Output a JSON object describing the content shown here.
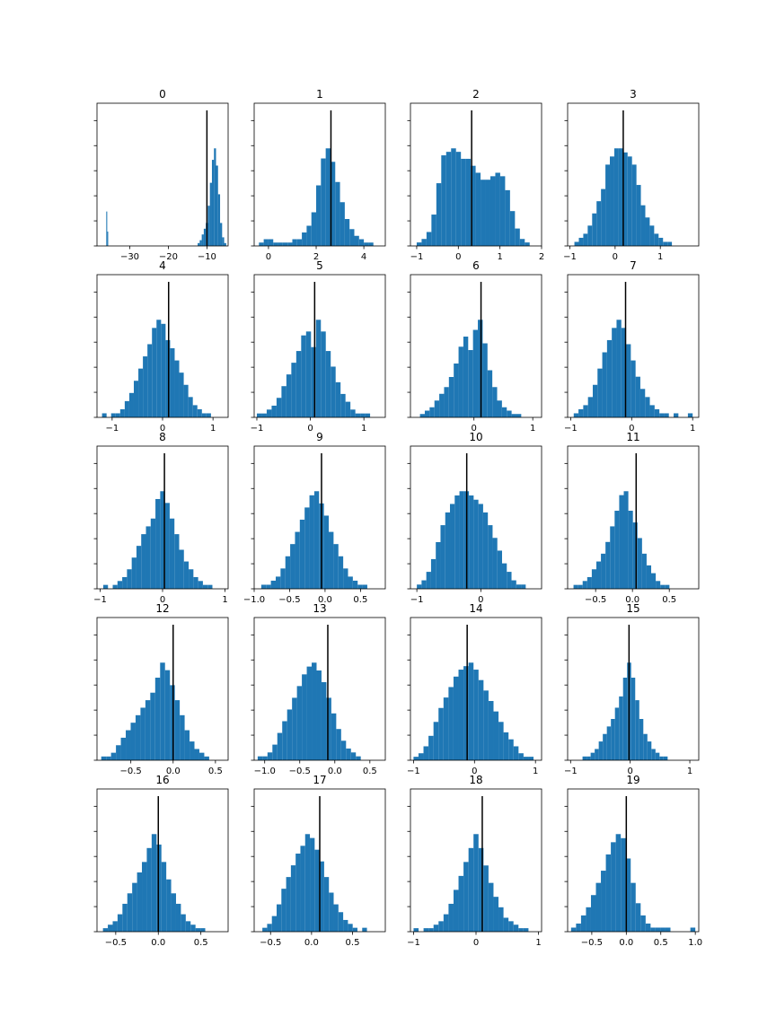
{
  "figure": {
    "bar_color": "#1f77b4",
    "marker_color": "#000000",
    "bins": 25
  },
  "chart_data": [
    {
      "type": "bar",
      "title": "0",
      "xlim": [
        -38.5,
        -4.5
      ],
      "xticks": [
        -30,
        -20,
        -10
      ],
      "xtick_labels": [
        "−30",
        "−20",
        "−10"
      ],
      "marker": -10.0,
      "hist_segments": [
        {
          "range": [
            -36.1,
            -35.6
          ],
          "bins": 2,
          "values": [
            12,
            5
          ]
        },
        {
          "range": [
            -12.4,
            -5.0
          ],
          "bins": 14,
          "values": [
            1,
            2,
            4,
            6,
            8,
            14,
            22,
            30,
            34,
            28,
            18,
            8,
            3,
            1
          ]
        }
      ]
    },
    {
      "type": "bar",
      "title": "1",
      "xlim": [
        -0.6,
        4.9
      ],
      "xticks": [
        0,
        2,
        4
      ],
      "xtick_labels": [
        "0",
        "2",
        "4"
      ],
      "marker": 2.62,
      "hist": {
        "range": [
          -0.4,
          4.6
        ],
        "values": [
          1,
          2,
          2,
          1,
          1,
          1,
          1,
          2,
          2,
          4,
          6,
          10,
          18,
          26,
          29,
          25,
          19,
          13,
          8,
          5,
          3,
          2,
          1,
          1,
          0
        ]
      }
    },
    {
      "type": "bar",
      "title": "2",
      "xlim": [
        -1.15,
        2.0
      ],
      "xticks": [
        -1,
        0,
        1,
        2
      ],
      "xtick_labels": [
        "−1",
        "0",
        "1",
        "2"
      ],
      "marker": 0.32,
      "hist": {
        "range": [
          -1.0,
          1.95
        ],
        "values": [
          1,
          2,
          4,
          9,
          18,
          26,
          27,
          28,
          27,
          25,
          25,
          23,
          21,
          19,
          19,
          20,
          21,
          20,
          16,
          10,
          5,
          2,
          1,
          0,
          0
        ]
      }
    },
    {
      "type": "bar",
      "title": "3",
      "xlim": [
        -1.05,
        1.85
      ],
      "xticks": [
        -1,
        0,
        1
      ],
      "xtick_labels": [
        "−1",
        "0",
        "1"
      ],
      "marker": 0.18,
      "hist": {
        "range": [
          -0.9,
          1.55
        ],
        "values": [
          1,
          2,
          3,
          5,
          8,
          11,
          14,
          20,
          22,
          24,
          24,
          23,
          22,
          20,
          15,
          10,
          7,
          5,
          3,
          2,
          1,
          1,
          0,
          0,
          0
        ]
      }
    },
    {
      "type": "bar",
      "title": "4",
      "xlim": [
        -1.3,
        1.3
      ],
      "xticks": [
        -1,
        0,
        1
      ],
      "xtick_labels": [
        "−1",
        "0",
        "1"
      ],
      "marker": 0.12,
      "hist": {
        "range": [
          -1.2,
          1.05
        ],
        "values": [
          1,
          0,
          1,
          1,
          2,
          4,
          6,
          9,
          12,
          15,
          18,
          22,
          24,
          23,
          19,
          17,
          14,
          11,
          8,
          5,
          3,
          2,
          1,
          1,
          0
        ]
      }
    },
    {
      "type": "bar",
      "title": "5",
      "xlim": [
        -1.05,
        1.4
      ],
      "xticks": [
        -1,
        0,
        1
      ],
      "xtick_labels": [
        "−1",
        "0",
        "1"
      ],
      "marker": 0.08,
      "hist": {
        "range": [
          -1.0,
          1.3
        ],
        "values": [
          1,
          1,
          2,
          3,
          5,
          8,
          11,
          14,
          17,
          21,
          22,
          18,
          25,
          22,
          17,
          13,
          9,
          6,
          4,
          2,
          1,
          1,
          1,
          0,
          0
        ]
      }
    },
    {
      "type": "bar",
      "title": "6",
      "xlim": [
        -1.08,
        1.15
      ],
      "xticks": [
        0,
        1
      ],
      "xtick_labels": [
        "0",
        "1"
      ],
      "marker": 0.12,
      "hist": {
        "range": [
          -1.0,
          1.05
        ],
        "values": [
          0,
          1,
          2,
          3,
          5,
          7,
          9,
          12,
          16,
          21,
          24,
          20,
          26,
          29,
          22,
          14,
          9,
          5,
          3,
          2,
          1,
          1,
          0,
          0,
          0
        ]
      }
    },
    {
      "type": "bar",
      "title": "7",
      "xlim": [
        -1.05,
        1.1
      ],
      "xticks": [
        -1,
        0,
        1
      ],
      "xtick_labels": [
        "−1",
        "0",
        "1"
      ],
      "marker": -0.1,
      "hist": {
        "range": [
          -0.95,
          1.0
        ],
        "values": [
          1,
          2,
          3,
          5,
          8,
          12,
          16,
          19,
          22,
          24,
          22,
          18,
          14,
          10,
          7,
          5,
          3,
          2,
          1,
          1,
          0,
          1,
          0,
          0,
          1
        ]
      }
    },
    {
      "type": "bar",
      "title": "8",
      "xlim": [
        -1.05,
        1.05
      ],
      "xticks": [
        -1,
        0,
        1
      ],
      "xtick_labels": [
        "−1",
        "0",
        "1"
      ],
      "marker": 0.03,
      "hist": {
        "range": [
          -0.95,
          0.95
        ],
        "values": [
          1,
          0,
          1,
          2,
          3,
          5,
          8,
          11,
          14,
          16,
          18,
          23,
          25,
          22,
          18,
          14,
          10,
          7,
          5,
          3,
          2,
          1,
          1,
          0,
          0
        ]
      }
    },
    {
      "type": "bar",
      "title": "9",
      "xlim": [
        -1.0,
        0.85
      ],
      "xticks": [
        -1.0,
        -0.5,
        0.0,
        0.5
      ],
      "xtick_labels": [
        "−1.0",
        "−0.5",
        "0.0",
        "0.5"
      ],
      "marker": -0.05,
      "hist": {
        "range": [
          -0.9,
          0.8
        ],
        "values": [
          1,
          1,
          2,
          3,
          5,
          8,
          11,
          14,
          17,
          20,
          23,
          24,
          21,
          18,
          14,
          11,
          8,
          5,
          3,
          2,
          1,
          1,
          0,
          0,
          0
        ]
      }
    },
    {
      "type": "bar",
      "title": "10",
      "xlim": [
        -1.1,
        0.95
      ],
      "xticks": [
        -1,
        0
      ],
      "xtick_labels": [
        "−1",
        "0"
      ],
      "marker": -0.22,
      "hist": {
        "range": [
          -1.0,
          0.85
        ],
        "values": [
          1,
          2,
          4,
          7,
          11,
          15,
          18,
          20,
          22,
          23,
          23,
          22,
          21,
          20,
          18,
          15,
          12,
          9,
          6,
          4,
          2,
          1,
          1,
          0,
          0
        ]
      }
    },
    {
      "type": "bar",
      "title": "11",
      "xlim": [
        -0.88,
        0.9
      ],
      "xticks": [
        -0.5,
        0.0,
        0.5
      ],
      "xtick_labels": [
        "−0.5",
        "0.0",
        "0.5"
      ],
      "marker": 0.05,
      "hist": {
        "range": [
          -0.8,
          0.75
        ],
        "values": [
          1,
          1,
          2,
          3,
          5,
          7,
          9,
          12,
          16,
          20,
          24,
          25,
          20,
          17,
          13,
          9,
          6,
          4,
          2,
          1,
          1,
          0,
          0,
          0,
          0
        ]
      }
    },
    {
      "type": "bar",
      "title": "12",
      "xlim": [
        -0.9,
        0.65
      ],
      "xticks": [
        -0.5,
        0.0,
        0.5
      ],
      "xtick_labels": [
        "−0.5",
        "0.0",
        "0.5"
      ],
      "marker": 0.0,
      "hist": {
        "range": [
          -0.85,
          0.6
        ],
        "values": [
          1,
          1,
          2,
          4,
          6,
          8,
          10,
          12,
          14,
          16,
          18,
          22,
          26,
          24,
          20,
          16,
          12,
          8,
          5,
          3,
          2,
          1,
          0,
          0,
          0
        ]
      }
    },
    {
      "type": "bar",
      "title": "13",
      "xlim": [
        -1.15,
        0.72
      ],
      "xticks": [
        -1.0,
        -0.5,
        0.0,
        0.5
      ],
      "xtick_labels": [
        "−1.0",
        "−0.5",
        "0.0",
        "0.5"
      ],
      "marker": -0.1,
      "hist": {
        "range": [
          -1.1,
          0.65
        ],
        "values": [
          1,
          1,
          2,
          4,
          7,
          10,
          13,
          16,
          19,
          22,
          24,
          25,
          23,
          20,
          16,
          12,
          8,
          5,
          3,
          2,
          1,
          0,
          0,
          0,
          0
        ]
      }
    },
    {
      "type": "bar",
      "title": "14",
      "xlim": [
        -1.05,
        1.1
      ],
      "xticks": [
        -1,
        0,
        1
      ],
      "xtick_labels": [
        "−1",
        "0",
        "1"
      ],
      "marker": -0.12,
      "hist": {
        "range": [
          -1.0,
          1.05
        ],
        "values": [
          1,
          2,
          4,
          7,
          11,
          15,
          18,
          21,
          24,
          26,
          27,
          28,
          26,
          23,
          20,
          17,
          14,
          11,
          8,
          6,
          4,
          2,
          1,
          1,
          0
        ]
      }
    },
    {
      "type": "bar",
      "title": "15",
      "xlim": [
        -1.05,
        1.15
      ],
      "xticks": [
        -1,
        0,
        1
      ],
      "xtick_labels": [
        "−1",
        "0",
        "1"
      ],
      "marker": -0.02,
      "hist": {
        "range": [
          -0.8,
          0.9
        ],
        "values": [
          1,
          1,
          2,
          3,
          5,
          7,
          9,
          11,
          14,
          17,
          22,
          26,
          22,
          16,
          11,
          7,
          5,
          3,
          2,
          1,
          1,
          0,
          0,
          0,
          0
        ]
      }
    },
    {
      "type": "bar",
      "title": "16",
      "xlim": [
        -0.72,
        0.82
      ],
      "xticks": [
        -0.5,
        0.0,
        0.5
      ],
      "xtick_labels": [
        "−0.5",
        "0.0",
        "0.5"
      ],
      "marker": 0.0,
      "hist": {
        "range": [
          -0.65,
          0.78
        ],
        "values": [
          1,
          2,
          3,
          5,
          8,
          11,
          14,
          17,
          20,
          24,
          28,
          25,
          20,
          15,
          11,
          8,
          5,
          3,
          2,
          1,
          1,
          0,
          0,
          0,
          0
        ]
      }
    },
    {
      "type": "bar",
      "title": "17",
      "xlim": [
        -0.7,
        0.9
      ],
      "xticks": [
        -0.5,
        0.0,
        0.5
      ],
      "xtick_labels": [
        "−0.5",
        "0.0",
        "0.5"
      ],
      "marker": 0.1,
      "hist": {
        "range": [
          -0.6,
          0.85
        ],
        "values": [
          1,
          2,
          4,
          7,
          11,
          14,
          17,
          20,
          22,
          25,
          24,
          21,
          18,
          14,
          10,
          7,
          5,
          3,
          2,
          1,
          0,
          1,
          0,
          0,
          0
        ]
      }
    },
    {
      "type": "bar",
      "title": "18",
      "xlim": [
        -1.05,
        1.05
      ],
      "xticks": [
        -1,
        0,
        1
      ],
      "xtick_labels": [
        "−1",
        "0",
        "1"
      ],
      "marker": 0.1,
      "hist": {
        "range": [
          -1.0,
          1.0
        ],
        "values": [
          1,
          0,
          1,
          1,
          2,
          3,
          5,
          8,
          12,
          16,
          20,
          24,
          28,
          24,
          19,
          14,
          10,
          7,
          4,
          3,
          2,
          1,
          1,
          0,
          0
        ]
      }
    },
    {
      "type": "bar",
      "title": "19",
      "xlim": [
        -0.85,
        1.05
      ],
      "xticks": [
        -0.5,
        0.0,
        0.5,
        1.0
      ],
      "xtick_labels": [
        "−0.5",
        "0.0",
        "0.5",
        "1.0"
      ],
      "marker": 0.0,
      "hist": {
        "range": [
          -0.8,
          1.0
        ],
        "values": [
          1,
          2,
          4,
          6,
          9,
          12,
          15,
          19,
          22,
          24,
          23,
          18,
          12,
          7,
          4,
          2,
          1,
          1,
          1,
          1,
          0,
          0,
          0,
          0,
          1
        ]
      }
    }
  ]
}
